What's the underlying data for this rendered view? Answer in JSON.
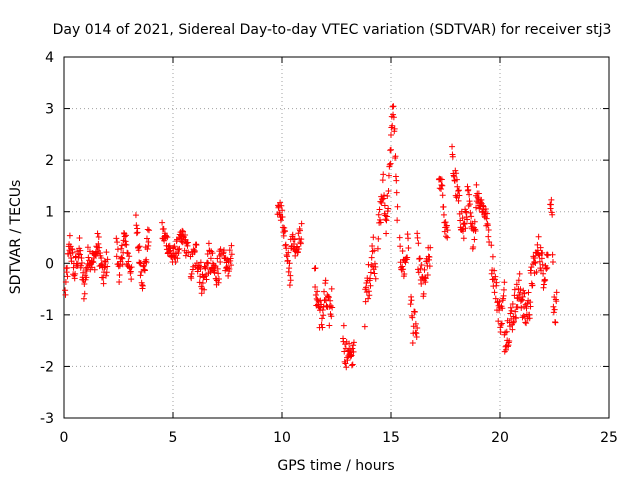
{
  "chart_data": {
    "type": "scatter",
    "title": "Day 014 of 2021, Sidereal Day-to-day VTEC variation (SDTVAR) for receiver stj3",
    "xlabel": "GPS time / hours",
    "ylabel": "SDTVAR / TECUs",
    "xlim": [
      0,
      25
    ],
    "ylim": [
      -3,
      4
    ],
    "xticks": [
      0,
      5,
      10,
      15,
      20,
      25
    ],
    "yticks": [
      -3,
      -2,
      -1,
      0,
      1,
      2,
      3,
      4
    ],
    "grid": true,
    "marker": "+",
    "color": "#ff0000",
    "series": [
      {
        "name": "SDTVAR",
        "segments": [
          {
            "x0": 0.05,
            "x1": 2.0,
            "y": [
              -0.6,
              0.4,
              -0.2,
              0.3,
              -0.5,
              0.2,
              0.0,
              0.4,
              -0.3,
              0.1
            ],
            "spread": 0.25
          },
          {
            "x0": 2.4,
            "x1": 3.1,
            "y": [
              0.3,
              -0.2,
              0.5,
              0.1,
              -0.1
            ],
            "spread": 0.3
          },
          {
            "x0": 3.3,
            "x1": 3.9,
            "y": [
              0.7,
              0.2,
              -0.3,
              0.1,
              0.6
            ],
            "spread": 0.25
          },
          {
            "x0": 4.5,
            "x1": 5.7,
            "y": [
              0.6,
              0.4,
              0.1,
              0.3,
              0.5,
              0.2
            ],
            "spread": 0.2
          },
          {
            "x0": 5.8,
            "x1": 7.2,
            "y": [
              -0.1,
              0.2,
              -0.4,
              0.1,
              -0.2,
              0.0
            ],
            "spread": 0.3
          },
          {
            "x0": 7.3,
            "x1": 7.7,
            "y": [
              0.1,
              -0.1,
              0.2
            ],
            "spread": 0.2
          },
          {
            "x0": 9.8,
            "x1": 10.4,
            "y": [
              0.9,
              1.1,
              0.8,
              0.5,
              0.1,
              -0.4
            ],
            "spread": 0.2
          },
          {
            "x0": 10.4,
            "x1": 10.9,
            "y": [
              0.5,
              0.3,
              0.6
            ],
            "spread": 0.2
          },
          {
            "x0": 11.5,
            "x1": 12.3,
            "y": [
              -0.3,
              -0.8,
              -1.1,
              -0.6,
              -1.0,
              -0.7
            ],
            "spread": 0.35
          },
          {
            "x0": 12.8,
            "x1": 13.3,
            "y": [
              -1.2,
              -1.9,
              -1.6,
              -2.0,
              -1.5
            ],
            "spread": 0.3
          },
          {
            "x0": 13.8,
            "x1": 14.3,
            "y": [
              -0.9,
              -0.4,
              -0.2,
              0.3,
              0.0
            ],
            "spread": 0.35
          },
          {
            "x0": 14.4,
            "x1": 15.0,
            "y": [
              0.5,
              1.0,
              1.5,
              0.8,
              1.3,
              2.3
            ],
            "spread": 0.3
          },
          {
            "x0": 15.0,
            "x1": 15.3,
            "y": [
              2.4,
              3.0,
              2.7,
              1.6,
              0.9
            ],
            "spread": 0.25
          },
          {
            "x0": 15.4,
            "x1": 15.8,
            "y": [
              0.2,
              -0.1,
              0.4
            ],
            "spread": 0.3
          },
          {
            "x0": 15.9,
            "x1": 16.2,
            "y": [
              -0.6,
              -1.3,
              -1.1,
              -1.5
            ],
            "spread": 0.25
          },
          {
            "x0": 16.2,
            "x1": 16.8,
            "y": [
              0.3,
              -0.2,
              -0.5,
              -0.1,
              0.2
            ],
            "spread": 0.3
          },
          {
            "x0": 17.2,
            "x1": 17.6,
            "y": [
              1.5,
              1.6,
              0.7,
              0.6
            ],
            "spread": 0.15
          },
          {
            "x0": 17.8,
            "x1": 18.9,
            "y": [
              2.0,
              1.5,
              1.0,
              0.6,
              1.3,
              0.5,
              0.9
            ],
            "spread": 0.3
          },
          {
            "x0": 18.9,
            "x1": 19.5,
            "y": [
              1.4,
              1.2,
              1.0,
              0.6
            ],
            "spread": 0.2
          },
          {
            "x0": 19.6,
            "x1": 20.2,
            "y": [
              0.1,
              -0.3,
              -0.8,
              -1.1,
              -0.6
            ],
            "spread": 0.3
          },
          {
            "x0": 20.2,
            "x1": 21.4,
            "y": [
              -1.4,
              -1.2,
              -0.8,
              -0.5,
              -1.0,
              -0.7
            ],
            "spread": 0.35
          },
          {
            "x0": 21.4,
            "x1": 22.2,
            "y": [
              -0.4,
              0.0,
              0.3,
              -0.2,
              0.1
            ],
            "spread": 0.3
          },
          {
            "x0": 22.3,
            "x1": 22.6,
            "y": [
              1.3,
              1.2,
              -0.6,
              -1.1,
              -0.8
            ],
            "spread": 0.25
          }
        ]
      }
    ]
  }
}
